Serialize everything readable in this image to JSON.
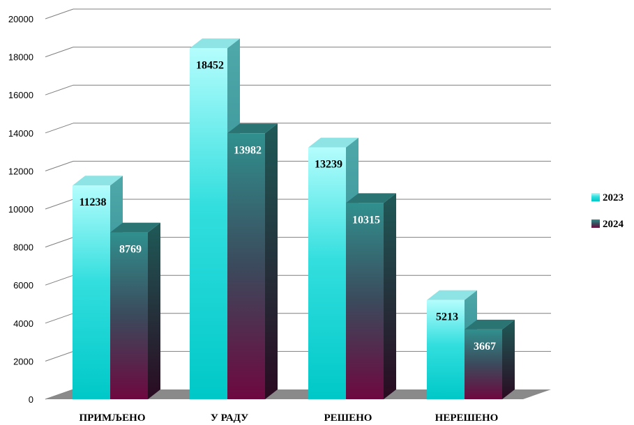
{
  "chart_data": {
    "type": "bar",
    "categories": [
      "ПРИМЉЕНО",
      "У РАДУ",
      "РЕШЕНО",
      "НЕРЕШЕНО"
    ],
    "series": [
      {
        "name": "2023",
        "values": [
          11238,
          18452,
          13239,
          5213
        ]
      },
      {
        "name": "2024",
        "values": [
          8769,
          13982,
          10315,
          3667
        ]
      }
    ],
    "ylim": [
      0,
      20000
    ],
    "yticks": [
      0,
      2000,
      4000,
      6000,
      8000,
      10000,
      12000,
      14000,
      16000,
      18000,
      20000
    ],
    "grid": true,
    "legend": "right",
    "colors": {
      "series_2023_light": "#aefcfc",
      "series_2023_mid": "#00cccc",
      "series_2023_side": "#2a8a8e",
      "series_2024_top": "#2e8c8a",
      "series_2024_bottom": "#6a0a3c",
      "series_2024_side": "#1e4a4a",
      "floor": "#8a8a8a",
      "grid": "#7f7f7f"
    }
  }
}
